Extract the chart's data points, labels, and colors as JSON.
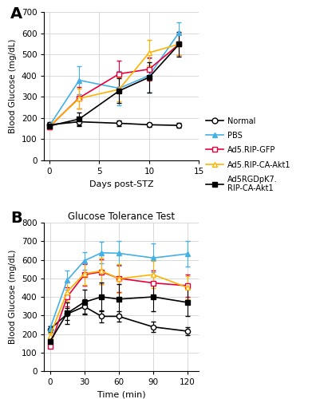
{
  "panel_A": {
    "xlabel": "Days post-STZ",
    "ylabel": "Blood Glucose (mg/dL)",
    "ylim": [
      0,
      700
    ],
    "yticks": [
      0,
      100,
      200,
      300,
      400,
      500,
      600,
      700
    ],
    "xlim": [
      -0.5,
      15
    ],
    "xticks": [
      0,
      5,
      10,
      15
    ],
    "series": {
      "Normal": {
        "x": [
          0,
          3,
          7,
          10,
          13
        ],
        "y": [
          168,
          182,
          175,
          168,
          165
        ],
        "yerr": [
          12,
          18,
          12,
          10,
          10
        ]
      },
      "PBS": {
        "x": [
          0,
          3,
          7,
          10,
          13
        ],
        "y": [
          162,
          378,
          340,
          400,
          603
        ],
        "yerr": [
          12,
          65,
          80,
          80,
          48
        ]
      },
      "Ad5.RIP-GFP": {
        "x": [
          0,
          3,
          7,
          10,
          13
        ],
        "y": [
          158,
          295,
          408,
          430,
          548
        ],
        "yerr": [
          10,
          52,
          62,
          55,
          52
        ]
      },
      "Ad5.RIP-CA-Akt1": {
        "x": [
          0,
          3,
          7,
          10,
          13
        ],
        "y": [
          160,
          292,
          335,
          508,
          548
        ],
        "yerr": [
          10,
          48,
          58,
          62,
          52
        ]
      },
      "Ad5RGDpK7.RIP-CA-Akt1": {
        "x": [
          0,
          3,
          7,
          10,
          13
        ],
        "y": [
          162,
          195,
          328,
          392,
          548
        ],
        "yerr": [
          10,
          32,
          58,
          72,
          58
        ]
      }
    }
  },
  "panel_B": {
    "title": "Glucose Tolerance Test",
    "xlabel": "Time (min)",
    "ylabel": "Blood Glucose (mg/dL)",
    "ylim": [
      0,
      800
    ],
    "yticks": [
      0,
      100,
      200,
      300,
      400,
      500,
      600,
      700,
      800
    ],
    "xlim": [
      -5,
      130
    ],
    "xticks": [
      0,
      30,
      60,
      90,
      120
    ],
    "series": {
      "Normal": {
        "x": [
          0,
          15,
          30,
          45,
          60,
          90,
          120
        ],
        "y": [
          225,
          308,
          348,
          295,
          295,
          238,
          215
        ],
        "yerr": [
          18,
          32,
          38,
          32,
          28,
          28,
          22
        ]
      },
      "PBS": {
        "x": [
          0,
          15,
          30,
          45,
          60,
          90,
          120
        ],
        "y": [
          228,
          490,
          595,
          638,
          635,
          610,
          632
        ],
        "yerr": [
          18,
          52,
          48,
          58,
          68,
          78,
          68
        ]
      },
      "Ad5.RIP-GFP": {
        "x": [
          0,
          15,
          30,
          45,
          60,
          90,
          120
        ],
        "y": [
          135,
          400,
          520,
          535,
          500,
          475,
          460
        ],
        "yerr": [
          12,
          52,
          58,
          68,
          72,
          68,
          62
        ]
      },
      "Ad5.RIP-CA-Akt1": {
        "x": [
          0,
          15,
          30,
          45,
          60,
          90,
          120
        ],
        "y": [
          190,
          428,
          525,
          540,
          498,
          520,
          450
        ],
        "yerr": [
          15,
          52,
          62,
          72,
          78,
          72,
          62
        ]
      },
      "Ad5RGDpK7.RIP-CA-Akt1": {
        "x": [
          0,
          15,
          30,
          45,
          60,
          90,
          120
        ],
        "y": [
          160,
          312,
          372,
          400,
          388,
          400,
          370
        ],
        "yerr": [
          15,
          58,
          68,
          78,
          82,
          78,
          72
        ]
      }
    }
  },
  "series_styles": {
    "Normal": {
      "color": "black",
      "marker": "o",
      "mfc": "white",
      "mec": "black"
    },
    "PBS": {
      "color": "#45b0e5",
      "marker": "^",
      "mfc": "#45b0e5",
      "mec": "#45b0e5"
    },
    "Ad5.RIP-GFP": {
      "color": "#e8003d",
      "marker": "s",
      "mfc": "white",
      "mec": "#e8003d"
    },
    "Ad5.RIP-CA-Akt1": {
      "color": "#FFB300",
      "marker": "^",
      "mfc": "white",
      "mec": "#FFB300"
    },
    "Ad5RGDpK7.RIP-CA-Akt1": {
      "color": "black",
      "marker": "s",
      "mfc": "black",
      "mec": "black"
    }
  },
  "legend_order": [
    "Normal",
    "PBS",
    "Ad5.RIP-GFP",
    "Ad5.RIP-CA-Akt1",
    "Ad5RGDpK7.RIP-CA-Akt1"
  ],
  "legend_labels": {
    "Normal": "Normal",
    "PBS": "PBS",
    "Ad5.RIP-GFP": "Ad5.RIP-GFP",
    "Ad5.RIP-CA-Akt1": "Ad5.RIP-CA-Akt1",
    "Ad5RGDpK7.RIP-CA-Akt1": "Ad5RGDpK7.\nRIP-CA-Akt1"
  }
}
